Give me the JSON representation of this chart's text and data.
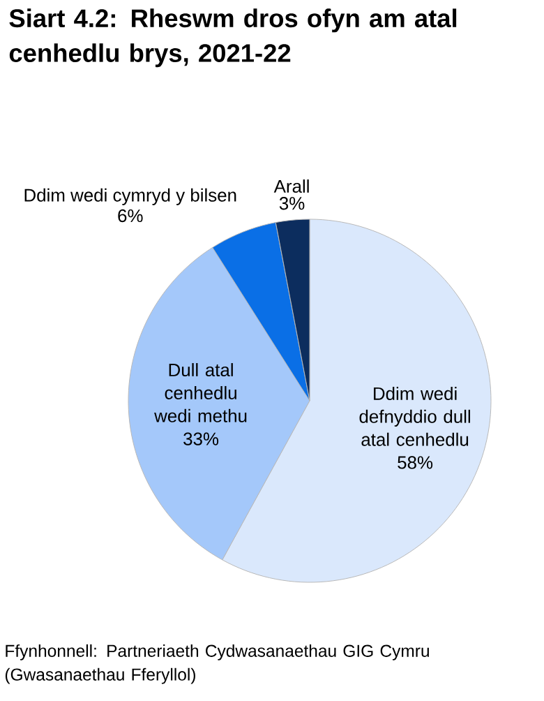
{
  "chart_data": {
    "type": "pie",
    "title": "Siart 4.2: Rheswm dros ofyn am atal cenhedlu brys, 2021-22",
    "categories": [
      "Ddim wedi defnyddio dull atal cenhedlu",
      "Dull atal cenhedlu wedi methu",
      "Ddim wedi cymryd y bilsen",
      "Arall"
    ],
    "values": [
      58,
      33,
      6,
      3
    ],
    "value_labels": [
      "58%",
      "33%",
      "6%",
      "3%"
    ],
    "colors": [
      "#dae8fc",
      "#a4c8fa",
      "#0a6fe6",
      "#0c2d5e"
    ],
    "annotations": [
      "Ffynhonnell: Partneriaeth Cydwasanaethau GIG Cymru (Gwasanaethau Fferyllol)"
    ]
  }
}
